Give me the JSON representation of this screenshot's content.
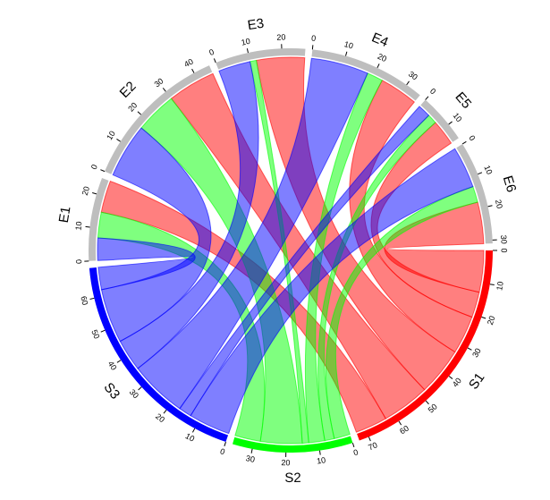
{
  "chart_data": {
    "type": "chord",
    "sectors": [
      {
        "name": "S1",
        "color": "#ff0000",
        "ticks": [
          0,
          10,
          20,
          30,
          40,
          50,
          60,
          70
        ]
      },
      {
        "name": "S2",
        "color": "#00ff00",
        "ticks": [
          0,
          10,
          20,
          30
        ]
      },
      {
        "name": "S3",
        "color": "#0000ff",
        "ticks": [
          0,
          10,
          20,
          30,
          40,
          50,
          60
        ]
      },
      {
        "name": "E1",
        "color": "#bebebe",
        "ticks": [
          0,
          10,
          20
        ]
      },
      {
        "name": "E2",
        "color": "#bebebe",
        "ticks": [
          0,
          10,
          20,
          30,
          40
        ]
      },
      {
        "name": "E3",
        "color": "#bebebe",
        "ticks": [
          0,
          10,
          20
        ]
      },
      {
        "name": "E4",
        "color": "#bebebe",
        "ticks": [
          0,
          10,
          20,
          30
        ]
      },
      {
        "name": "E5",
        "color": "#bebebe",
        "ticks": [
          0,
          10
        ]
      },
      {
        "name": "E6",
        "color": "#bebebe",
        "ticks": [
          0,
          10,
          20,
          30
        ]
      }
    ],
    "matrix": [
      [
        10,
        15,
        15,
        12,
        8,
        13
      ],
      [
        8,
        13,
        2,
        5,
        3,
        5
      ],
      [
        7,
        17,
        10,
        18,
        4,
        13
      ]
    ]
  }
}
